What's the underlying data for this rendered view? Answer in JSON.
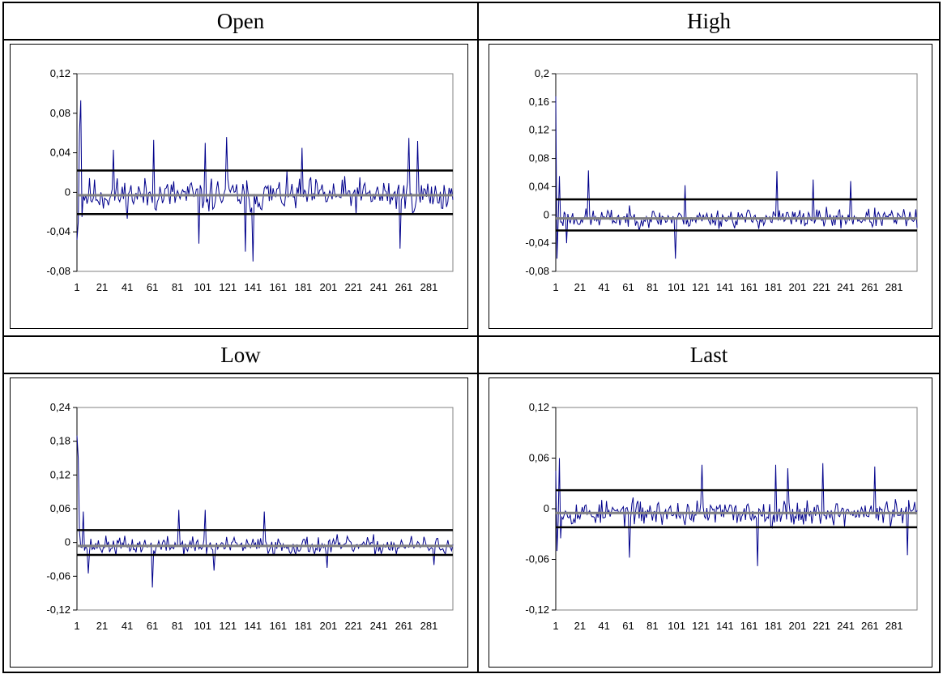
{
  "figure_label": "",
  "colors": {
    "series": "#00008B",
    "band": "#000000",
    "mean": "#808080"
  },
  "chart_data": [
    {
      "type": "line",
      "title": "Open",
      "ylim": [
        -0.08,
        0.12
      ],
      "yticks": [
        -0.08,
        -0.04,
        0,
        0.04,
        0.08,
        0.12
      ],
      "ytick_labels": [
        "-0,08",
        "-0,04",
        "0",
        "0,04",
        "0,08",
        "0,12"
      ],
      "xticks": [
        1,
        21,
        41,
        61,
        81,
        101,
        121,
        141,
        161,
        181,
        201,
        221,
        241,
        261,
        281
      ],
      "n_points": 300,
      "upper_band": 0.022,
      "lower_band": -0.022,
      "mean_line": -0.003,
      "spikes": [
        [
          1,
          -0.048
        ],
        [
          2,
          -0.03
        ],
        [
          3,
          0.06
        ],
        [
          4,
          0.093
        ],
        [
          5,
          -0.025
        ],
        [
          30,
          0.043
        ],
        [
          62,
          0.053
        ],
        [
          98,
          -0.052
        ],
        [
          103,
          0.05
        ],
        [
          120,
          0.056
        ],
        [
          141,
          -0.07
        ],
        [
          135,
          -0.06
        ],
        [
          180,
          0.045
        ],
        [
          258,
          -0.057
        ],
        [
          265,
          0.055
        ],
        [
          272,
          0.052
        ]
      ],
      "amplitude": 0.026,
      "seed": 11
    },
    {
      "type": "line",
      "title": "High",
      "ylim": [
        -0.08,
        0.2
      ],
      "yticks": [
        -0.08,
        -0.04,
        0,
        0.04,
        0.08,
        0.12,
        0.16,
        0.2
      ],
      "ytick_labels": [
        "-0,08",
        "-0,04",
        "0",
        "0,04",
        "0,08",
        "0,12",
        "0,16",
        "0,2"
      ],
      "xticks": [
        1,
        21,
        41,
        61,
        81,
        101,
        121,
        141,
        161,
        181,
        201,
        221,
        241,
        261,
        281
      ],
      "n_points": 300,
      "upper_band": 0.022,
      "lower_band": -0.022,
      "mean_line": -0.005,
      "spikes": [
        [
          1,
          0.168
        ],
        [
          2,
          -0.062
        ],
        [
          4,
          0.055
        ],
        [
          10,
          -0.04
        ],
        [
          28,
          0.063
        ],
        [
          100,
          -0.062
        ],
        [
          108,
          0.042
        ],
        [
          184,
          0.062
        ],
        [
          214,
          0.05
        ],
        [
          245,
          0.048
        ]
      ],
      "amplitude": 0.02,
      "seed": 23
    },
    {
      "type": "line",
      "title": "Low",
      "ylim": [
        -0.12,
        0.24
      ],
      "yticks": [
        -0.12,
        -0.06,
        0,
        0.06,
        0.12,
        0.18,
        0.24
      ],
      "ytick_labels": [
        "-0,12",
        "-0,06",
        "0",
        "0,06",
        "0,12",
        "0,18",
        "0,24"
      ],
      "xticks": [
        1,
        21,
        41,
        61,
        81,
        101,
        121,
        141,
        161,
        181,
        201,
        221,
        241,
        261,
        281
      ],
      "n_points": 300,
      "upper_band": 0.022,
      "lower_band": -0.022,
      "mean_line": -0.006,
      "spikes": [
        [
          1,
          0.19
        ],
        [
          2,
          0.15
        ],
        [
          3,
          0.02
        ],
        [
          6,
          0.055
        ],
        [
          10,
          -0.055
        ],
        [
          61,
          -0.08
        ],
        [
          82,
          0.058
        ],
        [
          103,
          0.058
        ],
        [
          110,
          -0.05
        ],
        [
          150,
          0.055
        ],
        [
          200,
          -0.045
        ],
        [
          285,
          -0.04
        ]
      ],
      "amplitude": 0.024,
      "seed": 37
    },
    {
      "type": "line",
      "title": "Last",
      "ylim": [
        -0.12,
        0.12
      ],
      "yticks": [
        -0.12,
        -0.06,
        0,
        0.06,
        0.12
      ],
      "ytick_labels": [
        "-0,12",
        "-0,06",
        "0",
        "0,06",
        "0,12"
      ],
      "xticks": [
        1,
        21,
        41,
        61,
        81,
        101,
        121,
        141,
        161,
        181,
        201,
        221,
        241,
        261,
        281
      ],
      "n_points": 300,
      "upper_band": 0.022,
      "lower_band": -0.022,
      "mean_line": -0.005,
      "spikes": [
        [
          1,
          0.045
        ],
        [
          2,
          -0.05
        ],
        [
          4,
          0.06
        ],
        [
          5,
          -0.035
        ],
        [
          62,
          -0.058
        ],
        [
          122,
          0.052
        ],
        [
          168,
          -0.068
        ],
        [
          183,
          0.052
        ],
        [
          193,
          0.048
        ],
        [
          222,
          0.054
        ],
        [
          265,
          0.05
        ],
        [
          292,
          -0.055
        ]
      ],
      "amplitude": 0.022,
      "seed": 53
    }
  ]
}
